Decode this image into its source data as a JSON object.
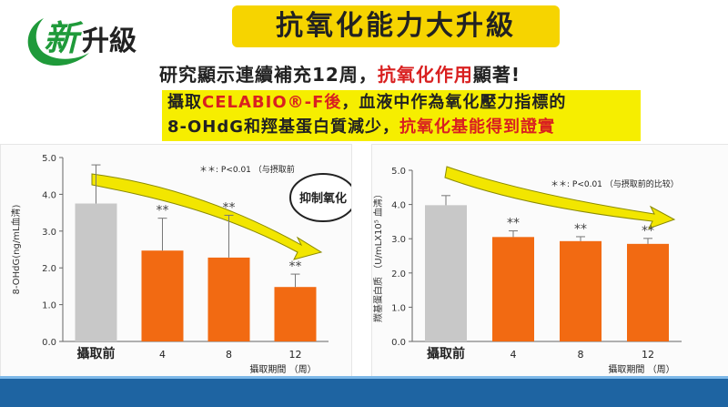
{
  "logo": {
    "char1": "新",
    "char2": "升級"
  },
  "header": {
    "title": "抗氧化能力大升級",
    "sub1_a": "研究顯示連續補充12周，",
    "sub1_red": "抗氧化作用",
    "sub1_b": "顯著!",
    "sub2_a": "攝取",
    "sub2_red1": "CELABIO®-F後",
    "sub2_b": "，血液中作為氧化壓力指標的",
    "sub2_c": "8-OHdG和羥基蛋白質減少，",
    "sub2_red2": "抗氧化基能得到證實"
  },
  "colors": {
    "title_bg": "#f6d400",
    "highlight_bg": "#f6ee00",
    "accent_red": "#d92020",
    "bar_gray": "#c8c8c8",
    "bar_orange": "#f26a12",
    "arrow_yellow": "#f2e600",
    "footer_blue": "#1e64a2"
  },
  "chart_data": [
    {
      "type": "bar",
      "ylabel": "8-OHdG(ng/mL血清)",
      "xlabel": "攝取期間 （周）",
      "ylim": [
        0,
        5
      ],
      "yticks": [
        "0.0",
        "1.0",
        "2.0",
        "3.0",
        "4.0",
        "5.0"
      ],
      "categories": [
        "攝取前",
        "4",
        "8",
        "12"
      ],
      "values": [
        3.75,
        2.47,
        2.28,
        1.48
      ],
      "error": [
        1.05,
        0.88,
        1.15,
        0.35
      ],
      "significance": [
        "",
        "**",
        "**",
        "**"
      ],
      "note": "＊＊: P<0.01 （与摂取前",
      "annotation": "抑制氧化"
    },
    {
      "type": "bar",
      "ylabel": "羰基蛋白质 （U/mLX10⁵ 血清）",
      "xlabel": "攝取期間 （周）",
      "ylim": [
        0,
        5
      ],
      "yticks": [
        "0.0",
        "1.0",
        "2.0",
        "3.0",
        "4.0",
        "5.0"
      ],
      "categories": [
        "攝取前",
        "4",
        "8",
        "12"
      ],
      "values": [
        3.98,
        3.05,
        2.93,
        2.85
      ],
      "error": [
        0.28,
        0.18,
        0.13,
        0.16
      ],
      "significance": [
        "",
        "**",
        "**",
        "**"
      ],
      "note": "＊＊: P<0.01 （与摂取前的比较）"
    }
  ]
}
